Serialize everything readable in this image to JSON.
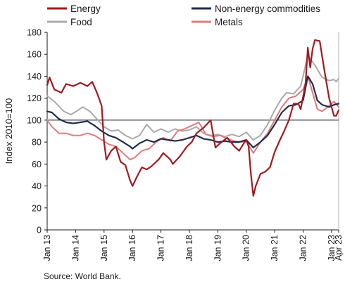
{
  "chart_data": {
    "type": "line",
    "ylabel": "Index 2010=100",
    "ylim": [
      0,
      180
    ],
    "yticks": [
      0,
      20,
      40,
      60,
      80,
      100,
      120,
      140,
      160,
      180
    ],
    "x_range": [
      "2013-01",
      "2023-04"
    ],
    "x_tick_labels": [
      "Jan 13",
      "Jan 14",
      "Jan 15",
      "Jan 16",
      "Jan 17",
      "Jan 18",
      "Jan 19",
      "Jan 20",
      "Jan 21",
      "Jan 22",
      "Jan 23",
      "Apr 23"
    ],
    "x_tick_months": [
      0,
      12,
      24,
      36,
      48,
      60,
      72,
      84,
      96,
      108,
      120,
      123
    ],
    "reference_line": 100,
    "legend_position": "top",
    "source": "Source: World Bank.",
    "series": [
      {
        "name": "Energy",
        "color": "#9e1b20",
        "points": [
          [
            "2013-01",
            132
          ],
          [
            "2013-02",
            139
          ],
          [
            "2013-04",
            128
          ],
          [
            "2013-07",
            125
          ],
          [
            "2013-09",
            133
          ],
          [
            "2013-12",
            131
          ],
          [
            "2014-03",
            134
          ],
          [
            "2014-06",
            131
          ],
          [
            "2014-08",
            135
          ],
          [
            "2014-10",
            125
          ],
          [
            "2014-12",
            113
          ],
          [
            "2015-01",
            80
          ],
          [
            "2015-02",
            64
          ],
          [
            "2015-04",
            72
          ],
          [
            "2015-06",
            76
          ],
          [
            "2015-08",
            62
          ],
          [
            "2015-10",
            59
          ],
          [
            "2015-12",
            45
          ],
          [
            "2016-01",
            40
          ],
          [
            "2016-03",
            49
          ],
          [
            "2016-05",
            57
          ],
          [
            "2016-07",
            55
          ],
          [
            "2016-09",
            58
          ],
          [
            "2016-12",
            64
          ],
          [
            "2017-02",
            70
          ],
          [
            "2017-05",
            64
          ],
          [
            "2017-06",
            60
          ],
          [
            "2017-09",
            67
          ],
          [
            "2017-12",
            76
          ],
          [
            "2018-02",
            80
          ],
          [
            "2018-04",
            88
          ],
          [
            "2018-07",
            93
          ],
          [
            "2018-10",
            100
          ],
          [
            "2018-12",
            75
          ],
          [
            "2019-02",
            79
          ],
          [
            "2019-05",
            84
          ],
          [
            "2019-08",
            76
          ],
          [
            "2019-10",
            72
          ],
          [
            "2019-12",
            79
          ],
          [
            "2020-01",
            82
          ],
          [
            "2020-02",
            76
          ],
          [
            "2020-03",
            50
          ],
          [
            "2020-04",
            31
          ],
          [
            "2020-05",
            40
          ],
          [
            "2020-07",
            51
          ],
          [
            "2020-09",
            53
          ],
          [
            "2020-11",
            57
          ],
          [
            "2021-01",
            71
          ],
          [
            "2021-03",
            81
          ],
          [
            "2021-05",
            90
          ],
          [
            "2021-07",
            100
          ],
          [
            "2021-09",
            115
          ],
          [
            "2021-11",
            115
          ],
          [
            "2021-12",
            110
          ],
          [
            "2022-02",
            133
          ],
          [
            "2022-03",
            166
          ],
          [
            "2022-04",
            148
          ],
          [
            "2022-05",
            165
          ],
          [
            "2022-06",
            173
          ],
          [
            "2022-08",
            172
          ],
          [
            "2022-10",
            145
          ],
          [
            "2022-12",
            120
          ],
          [
            "2023-01",
            112
          ],
          [
            "2023-02",
            104
          ],
          [
            "2023-03",
            104
          ],
          [
            "2023-04",
            109
          ]
        ]
      },
      {
        "name": "Non-energy commodities",
        "color": "#1f2d4a",
        "points": [
          [
            "2013-01",
            108
          ],
          [
            "2013-03",
            107
          ],
          [
            "2013-06",
            101
          ],
          [
            "2013-09",
            98
          ],
          [
            "2013-12",
            97
          ],
          [
            "2014-03",
            98
          ],
          [
            "2014-06",
            99
          ],
          [
            "2014-09",
            95
          ],
          [
            "2014-12",
            90
          ],
          [
            "2015-03",
            86
          ],
          [
            "2015-06",
            84
          ],
          [
            "2015-09",
            80
          ],
          [
            "2015-12",
            76
          ],
          [
            "2016-01",
            74
          ],
          [
            "2016-04",
            79
          ],
          [
            "2016-07",
            82
          ],
          [
            "2016-10",
            80
          ],
          [
            "2017-01",
            83
          ],
          [
            "2017-04",
            82
          ],
          [
            "2017-07",
            81
          ],
          [
            "2017-10",
            82
          ],
          [
            "2018-01",
            84
          ],
          [
            "2018-04",
            86
          ],
          [
            "2018-07",
            83
          ],
          [
            "2018-10",
            82
          ],
          [
            "2019-01",
            80
          ],
          [
            "2019-04",
            81
          ],
          [
            "2019-07",
            80
          ],
          [
            "2019-10",
            80
          ],
          [
            "2020-01",
            82
          ],
          [
            "2020-04",
            75
          ],
          [
            "2020-07",
            80
          ],
          [
            "2020-10",
            86
          ],
          [
            "2021-01",
            96
          ],
          [
            "2021-04",
            107
          ],
          [
            "2021-07",
            113
          ],
          [
            "2021-10",
            114
          ],
          [
            "2022-01",
            118
          ],
          [
            "2022-03",
            140
          ],
          [
            "2022-05",
            133
          ],
          [
            "2022-07",
            118
          ],
          [
            "2022-09",
            114
          ],
          [
            "2022-12",
            112
          ],
          [
            "2023-02",
            114
          ],
          [
            "2023-04",
            115
          ]
        ]
      },
      {
        "name": "Food",
        "color": "#a9a9ad",
        "points": [
          [
            "2013-01",
            122
          ],
          [
            "2013-04",
            117
          ],
          [
            "2013-08",
            108
          ],
          [
            "2013-11",
            105
          ],
          [
            "2014-02",
            109
          ],
          [
            "2014-04",
            112
          ],
          [
            "2014-07",
            108
          ],
          [
            "2014-10",
            101
          ],
          [
            "2015-01",
            94
          ],
          [
            "2015-04",
            90
          ],
          [
            "2015-07",
            91
          ],
          [
            "2015-10",
            86
          ],
          [
            "2016-01",
            83
          ],
          [
            "2016-04",
            86
          ],
          [
            "2016-07",
            96
          ],
          [
            "2016-10",
            89
          ],
          [
            "2017-01",
            92
          ],
          [
            "2017-04",
            89
          ],
          [
            "2017-07",
            92
          ],
          [
            "2017-10",
            90
          ],
          [
            "2018-01",
            91
          ],
          [
            "2018-04",
            94
          ],
          [
            "2018-07",
            88
          ],
          [
            "2018-10",
            86
          ],
          [
            "2019-01",
            87
          ],
          [
            "2019-04",
            85
          ],
          [
            "2019-07",
            87
          ],
          [
            "2019-10",
            85
          ],
          [
            "2020-01",
            89
          ],
          [
            "2020-04",
            82
          ],
          [
            "2020-07",
            86
          ],
          [
            "2020-10",
            96
          ],
          [
            "2021-01",
            109
          ],
          [
            "2021-04",
            120
          ],
          [
            "2021-06",
            125
          ],
          [
            "2021-09",
            124
          ],
          [
            "2021-12",
            131
          ],
          [
            "2022-03",
            159
          ],
          [
            "2022-06",
            150
          ],
          [
            "2022-09",
            139
          ],
          [
            "2022-12",
            136
          ],
          [
            "2023-02",
            137
          ],
          [
            "2023-03",
            135
          ],
          [
            "2023-04",
            138
          ]
        ]
      },
      {
        "name": "Metals",
        "color": "#e07b79",
        "points": [
          [
            "2013-01",
            100
          ],
          [
            "2013-03",
            94
          ],
          [
            "2013-06",
            88
          ],
          [
            "2013-09",
            88
          ],
          [
            "2013-12",
            86
          ],
          [
            "2014-03",
            86
          ],
          [
            "2014-06",
            88
          ],
          [
            "2014-09",
            86
          ],
          [
            "2014-12",
            82
          ],
          [
            "2015-03",
            78
          ],
          [
            "2015-06",
            76
          ],
          [
            "2015-09",
            70
          ],
          [
            "2015-12",
            64
          ],
          [
            "2016-02",
            66
          ],
          [
            "2016-05",
            72
          ],
          [
            "2016-08",
            74
          ],
          [
            "2016-11",
            80
          ],
          [
            "2017-02",
            84
          ],
          [
            "2017-05",
            81
          ],
          [
            "2017-08",
            90
          ],
          [
            "2017-11",
            92
          ],
          [
            "2018-02",
            95
          ],
          [
            "2018-05",
            98
          ],
          [
            "2018-08",
            87
          ],
          [
            "2018-11",
            85
          ],
          [
            "2019-02",
            86
          ],
          [
            "2019-05",
            83
          ],
          [
            "2019-08",
            81
          ],
          [
            "2019-11",
            80
          ],
          [
            "2020-01",
            81
          ],
          [
            "2020-04",
            70
          ],
          [
            "2020-07",
            80
          ],
          [
            "2020-10",
            88
          ],
          [
            "2021-01",
            100
          ],
          [
            "2021-04",
            112
          ],
          [
            "2021-07",
            120
          ],
          [
            "2021-10",
            122
          ],
          [
            "2022-01",
            128
          ],
          [
            "2022-03",
            140
          ],
          [
            "2022-05",
            125
          ],
          [
            "2022-07",
            110
          ],
          [
            "2022-09",
            108
          ],
          [
            "2022-12",
            113
          ],
          [
            "2023-02",
            117
          ],
          [
            "2023-04",
            112
          ]
        ]
      }
    ]
  }
}
